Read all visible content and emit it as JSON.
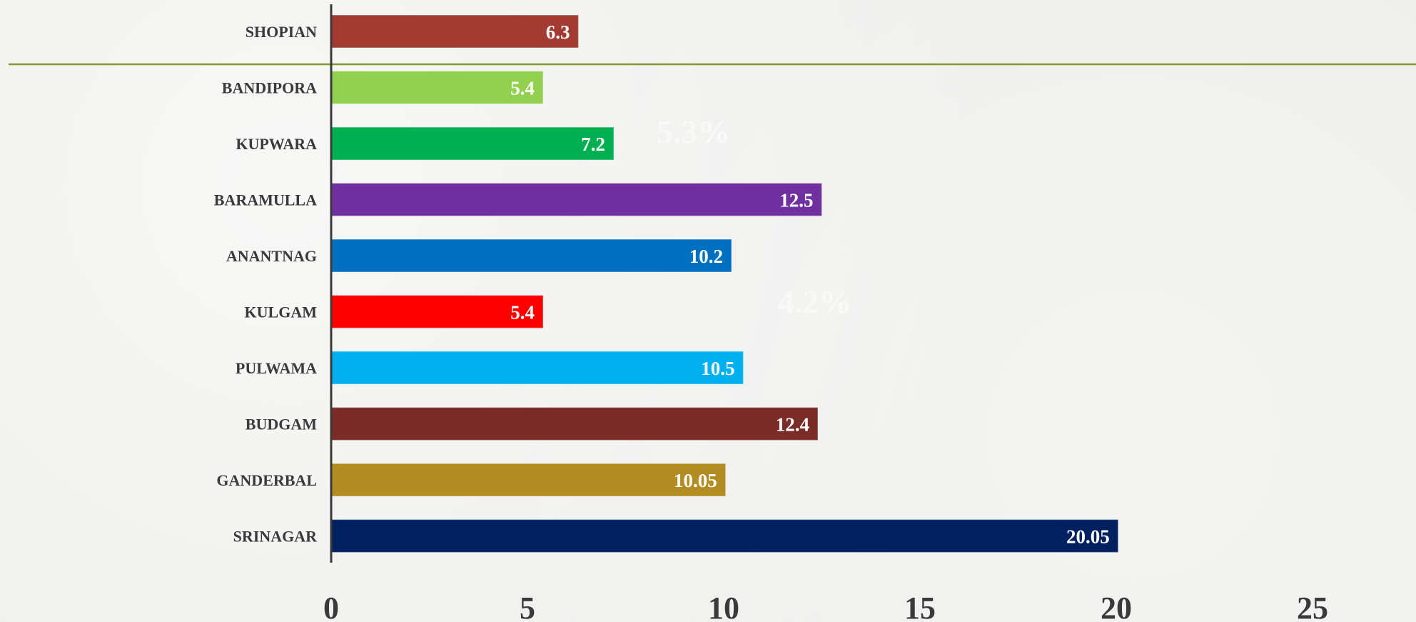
{
  "chart_data": {
    "type": "bar",
    "orientation": "horizontal",
    "categories": [
      "SHOPIAN",
      "BANDIPORA",
      "KUPWARA",
      "BARAMULLA",
      "ANANTNAG",
      "KULGAM",
      "PULWAMA",
      "BUDGAM",
      "GANDERBAL",
      "SRINAGAR"
    ],
    "values": [
      6.3,
      5.4,
      7.2,
      12.5,
      10.2,
      5.4,
      10.5,
      12.4,
      10.05,
      20.05
    ],
    "value_labels": [
      "6.3",
      "5.4",
      "7.2",
      "12.5",
      "10.2",
      "5.4",
      "10.5",
      "12.4",
      "10.05",
      "20.05"
    ],
    "colors": [
      "#a33b33",
      "#92d050",
      "#00b050",
      "#7030a0",
      "#0070c0",
      "#ff0000",
      "#00b0f0",
      "#7b2c28",
      "#b38d22",
      "#002060"
    ],
    "xlim": [
      0,
      25
    ],
    "x_ticks": [
      0,
      5,
      10,
      15,
      20,
      25
    ],
    "title": "",
    "xlabel": "",
    "ylabel": "",
    "grid": false,
    "legend": "none",
    "background_labels": [
      "5.3%",
      "4.2%"
    ],
    "rule_color": "#7f9a2e"
  }
}
